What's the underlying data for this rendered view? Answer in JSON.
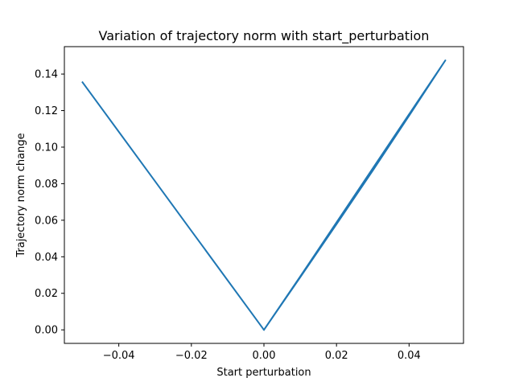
{
  "chart_data": {
    "type": "line",
    "title": "Variation of trajectory norm with start_perturbation",
    "xlabel": "Start perturbation",
    "ylabel": "Trajectory norm change",
    "xlim": [
      -0.055,
      0.055
    ],
    "ylim": [
      -0.0074,
      0.155
    ],
    "grid": false,
    "legend": "none",
    "xticks": [
      -0.04,
      -0.02,
      0.0,
      0.02,
      0.04
    ],
    "xtick_labels": [
      "−0.04",
      "−0.02",
      "0.00",
      "0.02",
      "0.04"
    ],
    "yticks": [
      0.0,
      0.02,
      0.04,
      0.06,
      0.08,
      0.1,
      0.12,
      0.14
    ],
    "ytick_labels": [
      "0.00",
      "0.02",
      "0.04",
      "0.06",
      "0.08",
      "0.10",
      "0.12",
      "0.14"
    ],
    "color": "#1f77b4",
    "series": [
      {
        "x": [
          -0.05,
          -0.04,
          -0.03,
          -0.02,
          -0.01,
          0.0,
          0.01,
          0.02,
          0.03,
          0.04,
          0.05,
          0.04,
          0.03,
          0.02,
          0.01,
          0.0
        ],
        "y": [
          0.1355,
          0.1084,
          0.0813,
          0.0542,
          0.0271,
          0.0,
          0.0292,
          0.0588,
          0.0884,
          0.118,
          0.1475,
          0.1172,
          0.0872,
          0.0578,
          0.0288,
          0.0
        ]
      }
    ]
  }
}
